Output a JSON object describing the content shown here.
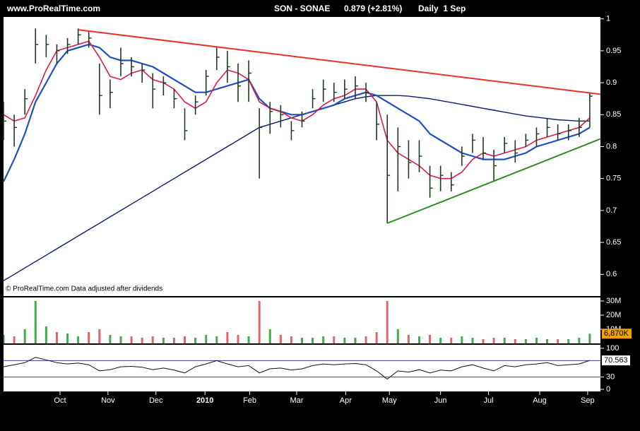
{
  "header": {
    "site": "www.ProRealTime.com",
    "symbol": "SON - SONAE",
    "quote": "0.879 (+2.81%)",
    "period": "Daily  1 Sep"
  },
  "chart_data": {
    "type": "stock",
    "watermark": "© ProRealTime.com  Data adjusted after dividends",
    "x": [
      0,
      1,
      2,
      3,
      4,
      5,
      6,
      7,
      8,
      9,
      10,
      11,
      12,
      13,
      14,
      15,
      16,
      17,
      18,
      19,
      20,
      21,
      22,
      23,
      24,
      25,
      26,
      27,
      28,
      29,
      30,
      31,
      32,
      33,
      34,
      35,
      36,
      37,
      38,
      39,
      40,
      41,
      42,
      43,
      44,
      45,
      46,
      47,
      48,
      49,
      50,
      51,
      52,
      53,
      54,
      55
    ],
    "xlim": [
      0,
      56
    ],
    "xticks": [
      {
        "value": 5.3,
        "label": "Oct"
      },
      {
        "value": 9.8,
        "label": "Nov"
      },
      {
        "value": 14.3,
        "label": "Dec"
      },
      {
        "value": 18.9,
        "label": "2010"
      },
      {
        "value": 23.1,
        "label": "Feb"
      },
      {
        "value": 27.5,
        "label": "Mar"
      },
      {
        "value": 32.1,
        "label": "Apr"
      },
      {
        "value": 36.2,
        "label": "May"
      },
      {
        "value": 41.0,
        "label": "Jun"
      },
      {
        "value": 45.5,
        "label": "Jul"
      },
      {
        "value": 50.3,
        "label": "Aug"
      },
      {
        "value": 54.8,
        "label": "Sep"
      }
    ],
    "high": [
      0.87,
      0.85,
      0.89,
      0.985,
      0.975,
      0.96,
      0.97,
      0.985,
      0.98,
      0.93,
      0.905,
      0.955,
      0.94,
      0.93,
      0.915,
      0.91,
      0.89,
      0.86,
      0.88,
      0.92,
      0.955,
      0.95,
      0.93,
      0.935,
      0.86,
      0.87,
      0.865,
      0.84,
      0.855,
      0.89,
      0.905,
      0.9,
      0.905,
      0.91,
      0.9,
      0.87,
      0.85,
      0.83,
      0.81,
      0.81,
      0.77,
      0.77,
      0.76,
      0.8,
      0.82,
      0.815,
      0.795,
      0.815,
      0.81,
      0.82,
      0.83,
      0.845,
      0.835,
      0.835,
      0.845,
      0.885
    ],
    "low": [
      0.81,
      0.8,
      0.85,
      0.93,
      0.94,
      0.93,
      0.945,
      0.96,
      0.955,
      0.85,
      0.86,
      0.91,
      0.91,
      0.9,
      0.86,
      0.88,
      0.86,
      0.81,
      0.85,
      0.88,
      0.92,
      0.9,
      0.87,
      0.87,
      0.75,
      0.82,
      0.83,
      0.81,
      0.83,
      0.86,
      0.87,
      0.87,
      0.875,
      0.875,
      0.87,
      0.81,
      0.68,
      0.73,
      0.75,
      0.76,
      0.72,
      0.73,
      0.73,
      0.77,
      0.79,
      0.78,
      0.745,
      0.79,
      0.775,
      0.8,
      0.8,
      0.815,
      0.81,
      0.81,
      0.815,
      0.83
    ],
    "close": [
      0.84,
      0.83,
      0.875,
      0.96,
      0.96,
      0.95,
      0.96,
      0.975,
      0.97,
      0.88,
      0.885,
      0.93,
      0.925,
      0.92,
      0.89,
      0.9,
      0.875,
      0.825,
      0.87,
      0.91,
      0.94,
      0.925,
      0.895,
      0.915,
      0.83,
      0.855,
      0.85,
      0.825,
      0.84,
      0.875,
      0.89,
      0.885,
      0.89,
      0.895,
      0.885,
      0.835,
      0.755,
      0.8,
      0.775,
      0.785,
      0.735,
      0.755,
      0.74,
      0.785,
      0.81,
      0.79,
      0.77,
      0.805,
      0.79,
      0.81,
      0.82,
      0.83,
      0.82,
      0.825,
      0.83,
      0.879
    ],
    "bar_color": "#1e3a1e",
    "ylim": [
      0.566,
      1.003
    ],
    "yticks": [
      0.6,
      0.65,
      0.7,
      0.75,
      0.8,
      0.85,
      0.9,
      0.95,
      1
    ],
    "lines": [
      {
        "color": "#0d1a6e",
        "width": 1.4,
        "values": [
          0.59,
          0.6,
          0.61,
          0.62,
          0.63,
          0.64,
          0.65,
          0.66,
          0.67,
          0.68,
          0.69,
          0.7,
          0.71,
          0.72,
          0.73,
          0.74,
          0.75,
          0.76,
          0.77,
          0.78,
          0.79,
          0.8,
          0.81,
          0.82,
          0.83,
          0.835,
          0.84,
          0.845,
          0.85,
          0.855,
          0.86,
          0.865,
          0.87,
          0.875,
          0.878,
          0.88,
          0.88,
          0.88,
          0.879,
          0.877,
          0.875,
          0.872,
          0.869,
          0.866,
          0.863,
          0.86,
          0.857,
          0.854,
          0.851,
          0.848,
          0.846,
          0.844,
          0.842,
          0.841,
          0.84,
          0.84
        ]
      },
      {
        "color": "#1f4fbf",
        "width": 2.2,
        "values": [
          0.745,
          0.78,
          0.82,
          0.87,
          0.9,
          0.93,
          0.95,
          0.955,
          0.96,
          0.955,
          0.94,
          0.935,
          0.935,
          0.93,
          0.925,
          0.915,
          0.905,
          0.895,
          0.885,
          0.885,
          0.89,
          0.895,
          0.9,
          0.905,
          0.875,
          0.86,
          0.855,
          0.85,
          0.85,
          0.855,
          0.86,
          0.865,
          0.875,
          0.88,
          0.885,
          0.88,
          0.87,
          0.86,
          0.85,
          0.84,
          0.82,
          0.81,
          0.8,
          0.79,
          0.785,
          0.78,
          0.78,
          0.78,
          0.785,
          0.79,
          0.8,
          0.805,
          0.81,
          0.815,
          0.82,
          0.83
        ]
      },
      {
        "color": "#d81b50",
        "width": 1.6,
        "values": [
          0.85,
          0.84,
          0.845,
          0.88,
          0.92,
          0.95,
          0.955,
          0.96,
          0.965,
          0.94,
          0.91,
          0.905,
          0.915,
          0.92,
          0.905,
          0.9,
          0.89,
          0.87,
          0.86,
          0.87,
          0.9,
          0.92,
          0.915,
          0.905,
          0.87,
          0.86,
          0.855,
          0.845,
          0.84,
          0.85,
          0.865,
          0.875,
          0.88,
          0.89,
          0.89,
          0.87,
          0.81,
          0.79,
          0.78,
          0.77,
          0.755,
          0.75,
          0.75,
          0.76,
          0.78,
          0.79,
          0.785,
          0.79,
          0.795,
          0.8,
          0.81,
          0.815,
          0.82,
          0.825,
          0.83,
          0.845
        ]
      }
    ],
    "trendlines": [
      {
        "color": "#e8312a",
        "x": [
          7,
          56
        ],
        "y": [
          0.983,
          0.882
        ]
      },
      {
        "color": "#2e8b22",
        "x": [
          36,
          56
        ],
        "y": [
          0.68,
          0.812
        ]
      }
    ],
    "volume": {
      "values": [
        6,
        5,
        10,
        30,
        12,
        8,
        7,
        5,
        8,
        10,
        6,
        5,
        5,
        4,
        5,
        4,
        4,
        5,
        4,
        6,
        5,
        8,
        6,
        5,
        30,
        10,
        6,
        5,
        4,
        4,
        5,
        5,
        4,
        4,
        5,
        8,
        30,
        10,
        6,
        5,
        6,
        4,
        4,
        5,
        4,
        3,
        4,
        4,
        3,
        3,
        4,
        3,
        3,
        3,
        4,
        6.87
      ],
      "ylim": [
        0,
        32.5
      ],
      "yticks": [
        {
          "value": 10,
          "label": "10M"
        },
        {
          "value": 20,
          "label": "20M"
        },
        {
          "value": 30,
          "label": "30M"
        }
      ],
      "up_color": "#3cb043",
      "down_color": "#e06666",
      "last_label": "6,870K",
      "badge_color": "#f0a000"
    },
    "rsi": {
      "values": [
        55,
        60,
        65,
        78,
        72,
        65,
        62,
        64,
        60,
        45,
        48,
        55,
        56,
        54,
        48,
        52,
        47,
        40,
        55,
        62,
        70,
        62,
        55,
        58,
        40,
        50,
        52,
        47,
        50,
        58,
        62,
        60,
        62,
        63,
        60,
        45,
        25,
        45,
        42,
        48,
        40,
        47,
        45,
        55,
        60,
        52,
        45,
        58,
        55,
        60,
        62,
        65,
        58,
        60,
        62,
        70.563
      ],
      "ylim": [
        -5.2,
        108.7
      ],
      "yticks": [
        0,
        30,
        100
      ],
      "levels": [
        30,
        70
      ],
      "level_color": "#3a3aa0",
      "color": "#111111",
      "last_label": "70.563",
      "badge_color": "#ffffff"
    }
  }
}
